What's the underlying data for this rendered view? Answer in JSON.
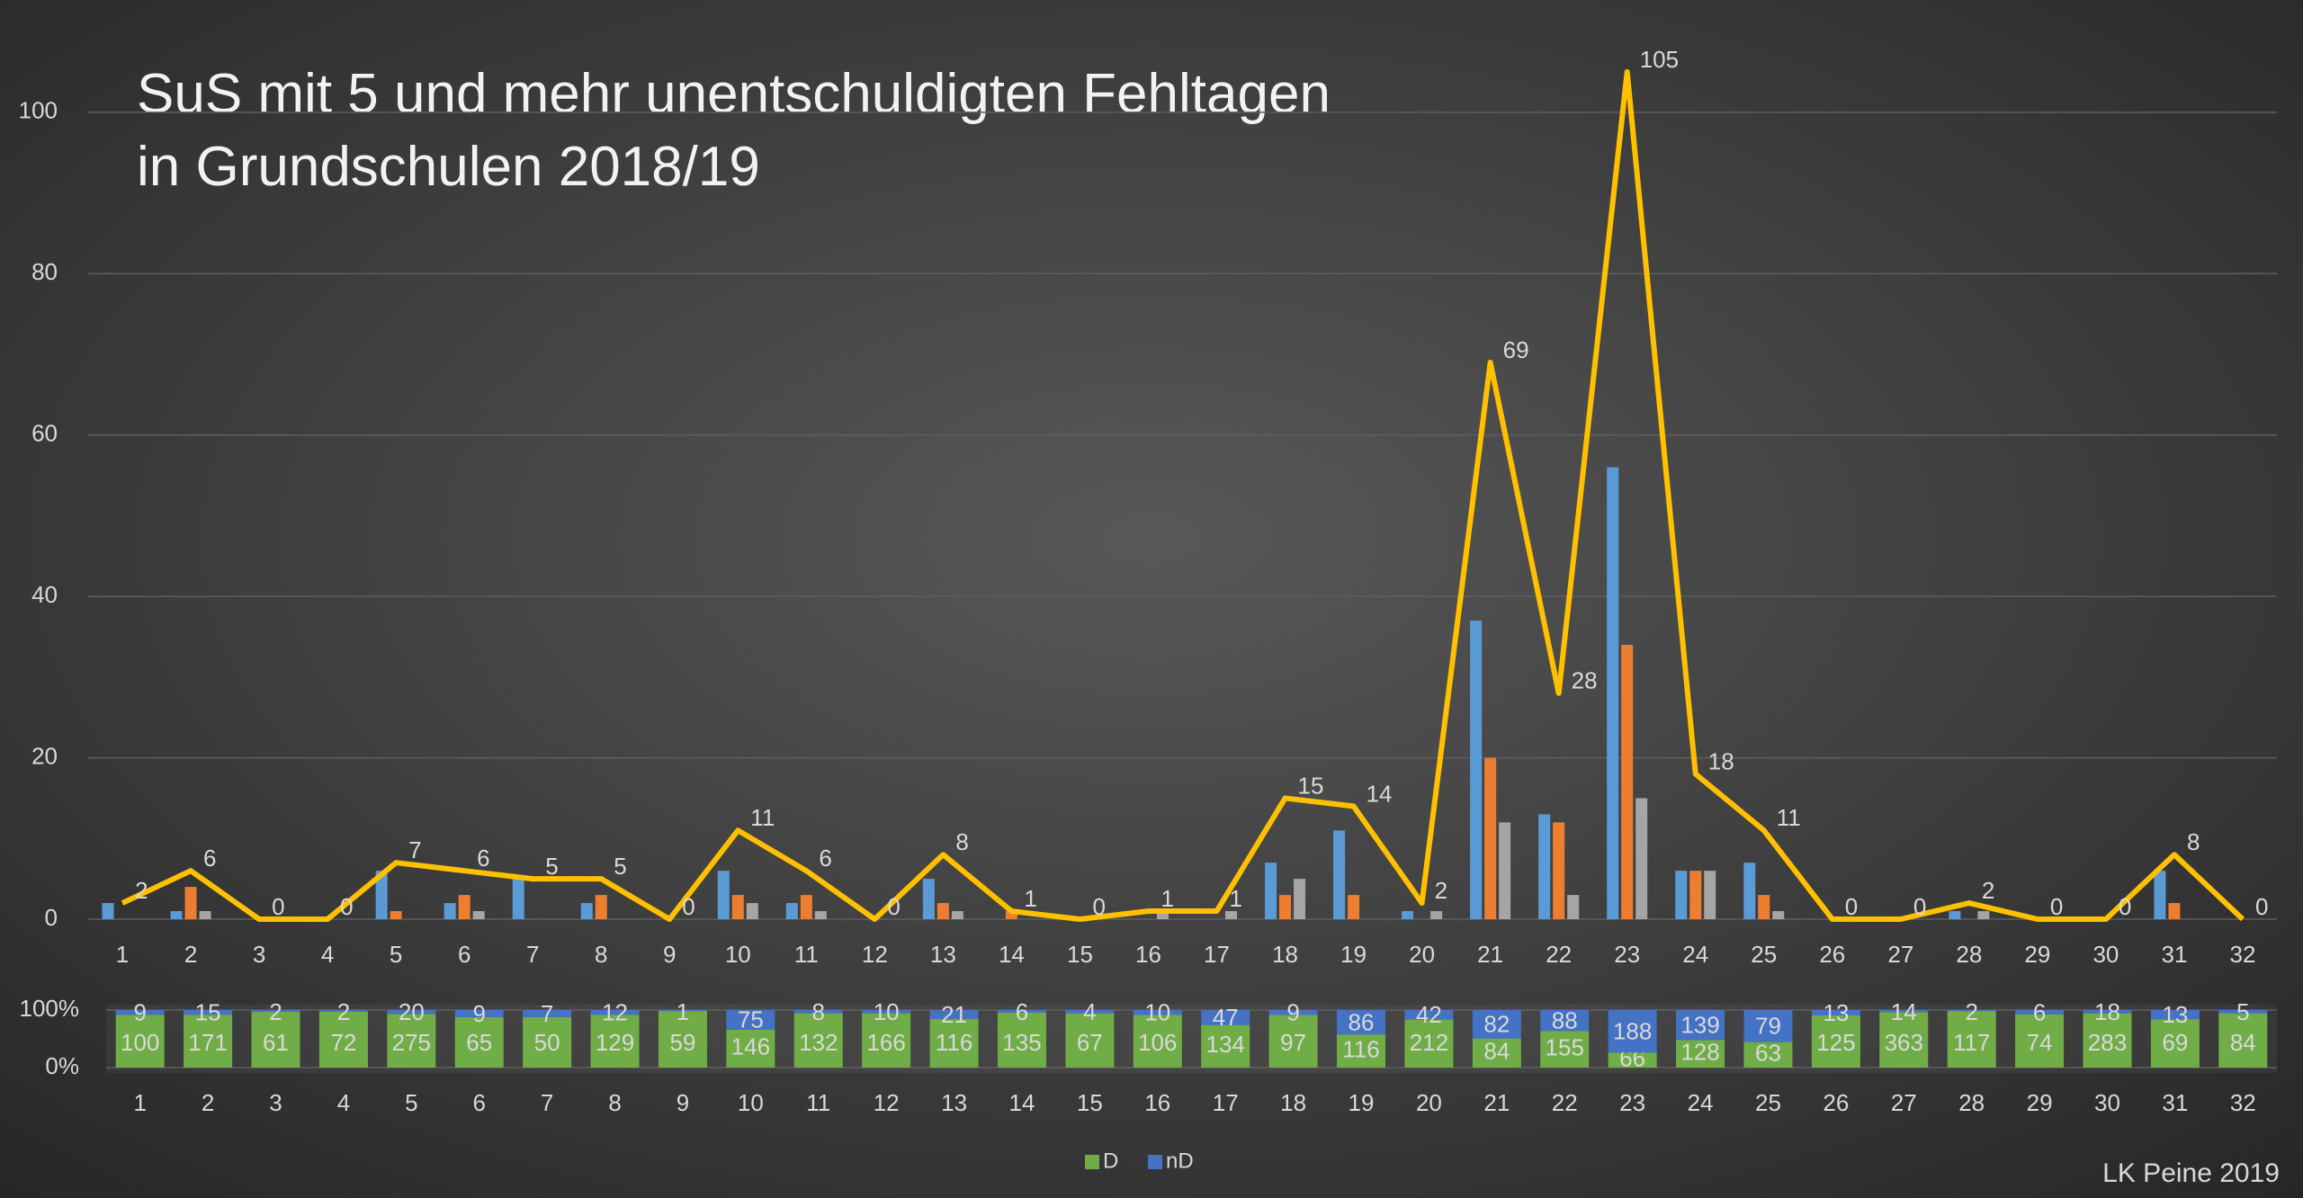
{
  "chart_data": [
    {
      "type": "bar",
      "title": [
        "SuS mit 5 und mehr unentschuldigten Fehltagen",
        "in Grundschulen 2018/19"
      ],
      "categories": [
        "1",
        "2",
        "3",
        "4",
        "5",
        "6",
        "7",
        "8",
        "9",
        "10",
        "11",
        "12",
        "13",
        "14",
        "15",
        "16",
        "17",
        "18",
        "19",
        "20",
        "21",
        "22",
        "23",
        "24",
        "25",
        "26",
        "27",
        "28",
        "29",
        "30",
        "31",
        "32"
      ],
      "series": [
        {
          "type": "bar",
          "color": "#5b9bd5",
          "values": [
            2,
            1,
            0,
            0,
            6,
            2,
            5,
            2,
            0,
            6,
            2,
            0,
            5,
            0,
            0,
            0,
            0,
            7,
            11,
            1,
            37,
            13,
            56,
            6,
            7,
            0,
            0,
            1,
            0,
            0,
            6,
            0
          ]
        },
        {
          "type": "bar",
          "color": "#ed7d31",
          "values": [
            0,
            4,
            0,
            0,
            1,
            3,
            0,
            3,
            0,
            3,
            3,
            0,
            2,
            1,
            0,
            0,
            0,
            3,
            3,
            0,
            20,
            12,
            34,
            6,
            3,
            0,
            0,
            0,
            0,
            0,
            2,
            0
          ]
        },
        {
          "type": "bar",
          "color": "#a5a5a5",
          "values": [
            0,
            1,
            0,
            0,
            0,
            1,
            0,
            0,
            0,
            2,
            1,
            0,
            1,
            0,
            0,
            1,
            1,
            5,
            0,
            1,
            12,
            3,
            15,
            6,
            1,
            0,
            0,
            1,
            0,
            0,
            0,
            0
          ]
        },
        {
          "type": "line",
          "color": "#ffc000",
          "values": [
            2,
            6,
            0,
            0,
            7,
            6,
            5,
            5,
            0,
            11,
            6,
            0,
            8,
            1,
            0,
            1,
            1,
            15,
            14,
            2,
            69,
            28,
            105,
            18,
            11,
            0,
            0,
            2,
            0,
            0,
            8,
            0
          ]
        }
      ],
      "ylim": [
        0,
        105
      ],
      "yticks": [
        0,
        20,
        40,
        60,
        80,
        100
      ],
      "grid": true
    },
    {
      "type": "stacked100",
      "categories": [
        "1",
        "2",
        "3",
        "4",
        "5",
        "6",
        "7",
        "8",
        "9",
        "10",
        "11",
        "12",
        "13",
        "14",
        "15",
        "16",
        "17",
        "18",
        "19",
        "20",
        "21",
        "22",
        "23",
        "24",
        "25",
        "26",
        "27",
        "28",
        "29",
        "30",
        "31",
        "32"
      ],
      "series": [
        {
          "name": "D",
          "color": "#70ad47",
          "values": [
            100,
            171,
            61,
            72,
            275,
            65,
            50,
            129,
            59,
            146,
            132,
            166,
            116,
            135,
            67,
            106,
            134,
            97,
            116,
            212,
            84,
            155,
            66,
            128,
            63,
            125,
            363,
            117,
            74,
            283,
            69,
            84
          ]
        },
        {
          "name": "nD",
          "color": "#4472c4",
          "values": [
            9,
            15,
            2,
            2,
            20,
            9,
            7,
            12,
            1,
            75,
            8,
            10,
            21,
            6,
            4,
            10,
            47,
            9,
            86,
            42,
            82,
            88,
            188,
            139,
            79,
            13,
            14,
            2,
            6,
            18,
            13,
            5
          ]
        }
      ],
      "ylim": [
        0,
        100
      ],
      "yticks": [
        {
          "value": 0,
          "label": "0%"
        },
        {
          "value": 100,
          "label": "100%"
        }
      ],
      "legend": "bottom"
    }
  ],
  "source": "LK Peine 2019"
}
